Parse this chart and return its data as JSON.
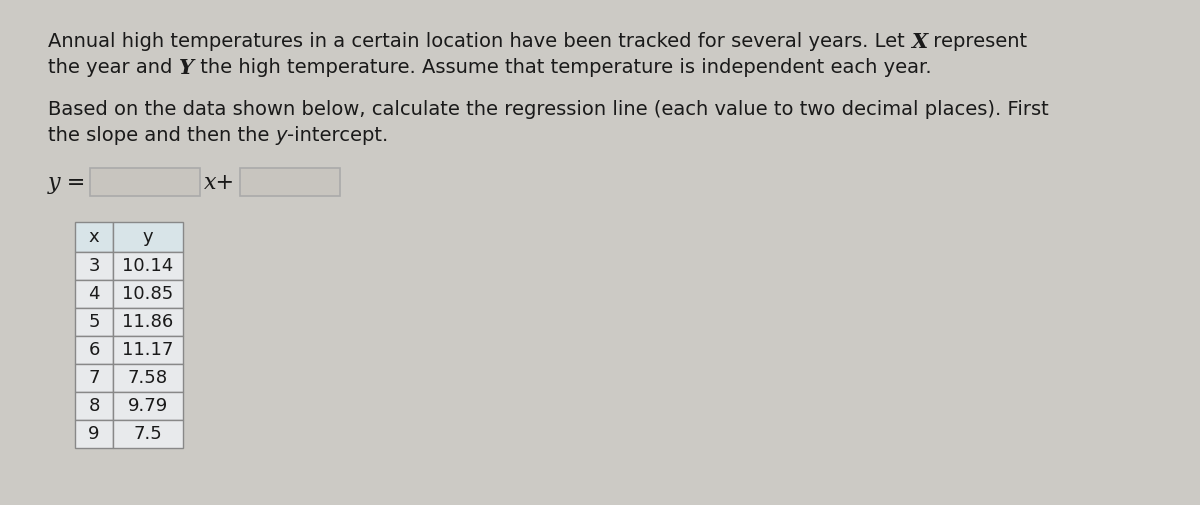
{
  "background_color": "#cccac5",
  "table_header_bg": "#d8e4e8",
  "table_cell_bg": "#e8eaec",
  "table_border_color": "#888888",
  "input_box_color": "#c8c5bf",
  "input_box_border": "#aaaaaa",
  "text_color": "#1a1a1a",
  "font_size_body": 14,
  "font_size_table": 13,
  "line1_normal": "Annual high temperatures in a certain location have been tracked for several years. Let ",
  "line1_italic": "X",
  "line1_end": " represent",
  "line2_normal1": "the year and ",
  "line2_italic": "Y",
  "line2_normal2": " the high temperature. Assume that temperature is independent each year.",
  "sub1": "Based on the data shown below, calculate the regression line (each value to two decimal places). First",
  "sub2_normal1": "the slope and then the ",
  "sub2_italic": "y",
  "sub2_normal2": "-intercept.",
  "table_headers": [
    "x",
    "y"
  ],
  "table_data": [
    [
      3,
      "10.14"
    ],
    [
      4,
      "10.85"
    ],
    [
      5,
      "11.86"
    ],
    [
      6,
      "11.17"
    ],
    [
      7,
      "7.58"
    ],
    [
      8,
      "9.79"
    ],
    [
      9,
      "7.5"
    ]
  ]
}
